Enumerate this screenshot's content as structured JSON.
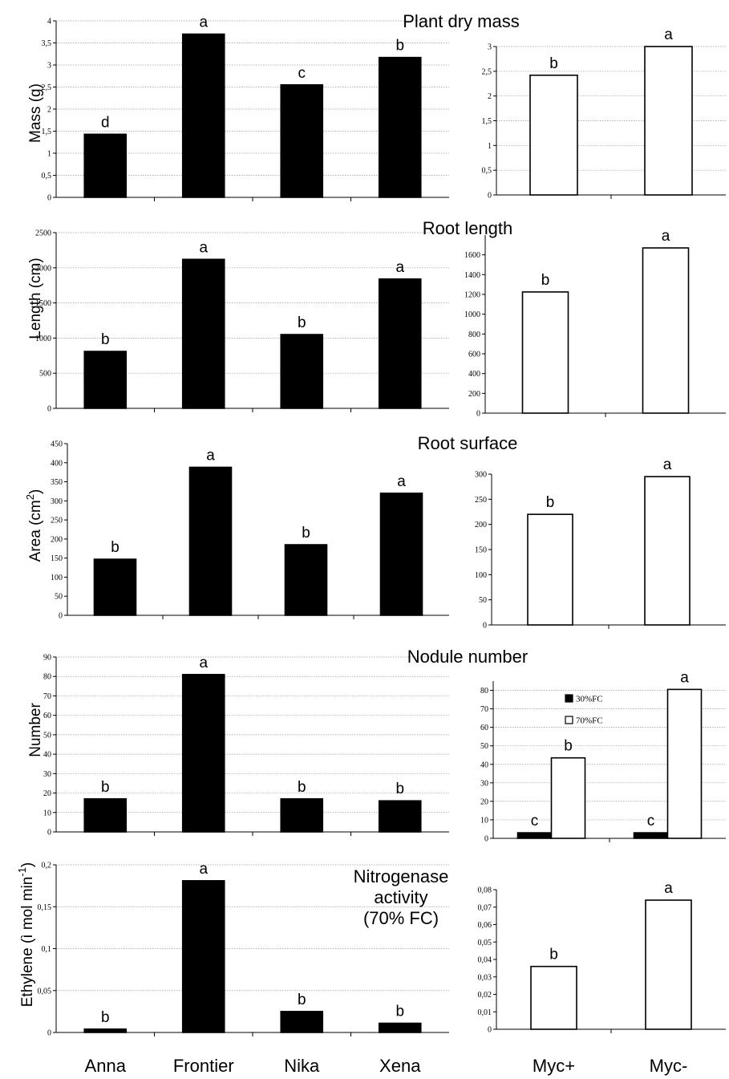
{
  "colors": {
    "black_series": "#000000",
    "white_series": "#ffffff",
    "grid": "#9a9a9a"
  },
  "legend": {
    "items": [
      {
        "label": "30%FC",
        "fill": "#000000"
      },
      {
        "label": "70%FC",
        "fill": "#ffffff"
      }
    ]
  },
  "chart_data": [
    {
      "id": "mass-cultivar",
      "type": "bar",
      "title": "Plant dry mass",
      "ylabel": "Mass (g)",
      "categories": [
        "Anna",
        "Frontier",
        "Nika",
        "Xena"
      ],
      "show_category_labels": false,
      "ylim": [
        0,
        4
      ],
      "yticks": [
        "0",
        "0,5",
        "1",
        "1,5",
        "2",
        "2,5",
        "3",
        "3,5",
        "4"
      ],
      "grid": true,
      "series": [
        {
          "fill": "#000000",
          "values": [
            1.43,
            3.7,
            2.55,
            3.17
          ],
          "letters": [
            "d",
            "a",
            "c",
            "b"
          ]
        }
      ]
    },
    {
      "id": "mass-myc",
      "type": "bar",
      "categories": [
        "Myc+",
        "Myc-"
      ],
      "show_category_labels": false,
      "ylim": [
        0,
        3
      ],
      "yticks": [
        "0",
        "0,5",
        "1",
        "1,5",
        "2",
        "2,5",
        "3"
      ],
      "grid": true,
      "series": [
        {
          "fill": "#ffffff",
          "values": [
            2.42,
            3.0
          ],
          "letters": [
            "b",
            "a"
          ]
        }
      ]
    },
    {
      "id": "length-cultivar",
      "type": "bar",
      "title": "Root length",
      "ylabel": "Length (cm)",
      "categories": [
        "Anna",
        "Frontier",
        "Nika",
        "Xena"
      ],
      "show_category_labels": false,
      "ylim": [
        0,
        2500
      ],
      "yticks": [
        "0",
        "500",
        "1000",
        "1500",
        "2000",
        "2500"
      ],
      "grid": true,
      "series": [
        {
          "fill": "#000000",
          "values": [
            810,
            2120,
            1050,
            1840
          ],
          "letters": [
            "b",
            "a",
            "b",
            "a"
          ]
        }
      ]
    },
    {
      "id": "length-myc",
      "type": "bar",
      "categories": [
        "Myc+",
        "Myc-"
      ],
      "show_category_labels": false,
      "ylim": [
        0,
        1800
      ],
      "yticks": [
        "0",
        "200",
        "400",
        "600",
        "800",
        "1000",
        "1200",
        "1400",
        "1600"
      ],
      "grid": false,
      "series": [
        {
          "fill": "#ffffff",
          "values": [
            1225,
            1670
          ],
          "letters": [
            "b",
            "a"
          ]
        }
      ]
    },
    {
      "id": "surface-cultivar",
      "type": "bar",
      "title": "Root surface",
      "ylabel": "Area (cm²)",
      "categories": [
        "Anna",
        "Frontier",
        "Nika",
        "Xena"
      ],
      "show_category_labels": false,
      "ylim": [
        0,
        450
      ],
      "yticks": [
        "0",
        "50",
        "100",
        "150",
        "200",
        "250",
        "300",
        "350",
        "400",
        "450"
      ],
      "grid": false,
      "series": [
        {
          "fill": "#000000",
          "values": [
            147,
            388,
            185,
            320
          ],
          "letters": [
            "b",
            "a",
            "b",
            "a"
          ]
        }
      ]
    },
    {
      "id": "surface-myc",
      "type": "bar",
      "categories": [
        "Myc+",
        "Myc-"
      ],
      "show_category_labels": false,
      "ylim": [
        0,
        300
      ],
      "yticks": [
        "0",
        "50",
        "100",
        "150",
        "200",
        "250",
        "300"
      ],
      "grid": false,
      "series": [
        {
          "fill": "#ffffff",
          "values": [
            220,
            295
          ],
          "letters": [
            "b",
            "a"
          ]
        }
      ]
    },
    {
      "id": "nodule-cultivar",
      "type": "bar",
      "title": "Nodule number",
      "ylabel": "Number",
      "categories": [
        "Anna",
        "Frontier",
        "Nika",
        "Xena"
      ],
      "show_category_labels": false,
      "ylim": [
        0,
        90
      ],
      "yticks": [
        "0",
        "10",
        "20",
        "30",
        "40",
        "50",
        "60",
        "70",
        "80",
        "90"
      ],
      "grid": true,
      "series": [
        {
          "fill": "#000000",
          "values": [
            17,
            81,
            17,
            16
          ],
          "letters": [
            "b",
            "a",
            "b",
            "b"
          ]
        }
      ]
    },
    {
      "id": "nodule-myc",
      "type": "bar",
      "categories": [
        "Myc+",
        "Myc-"
      ],
      "show_category_labels": false,
      "ylim": [
        0,
        85
      ],
      "yticks": [
        "0",
        "10",
        "20",
        "30",
        "40",
        "50",
        "60",
        "70",
        "80"
      ],
      "grid": true,
      "legend": "top-left",
      "series": [
        {
          "name": "30%FC",
          "fill": "#000000",
          "values": [
            3,
            3
          ],
          "letters": [
            "c",
            "c"
          ]
        },
        {
          "name": "70%FC",
          "fill": "#ffffff",
          "values": [
            43.5,
            80.5
          ],
          "letters": [
            "b",
            "a"
          ]
        }
      ]
    },
    {
      "id": "nitro-cultivar",
      "type": "bar",
      "title": "Nitrogenase activity (70% FC)",
      "title_lines": [
        "Nitrogenase",
        "activity",
        "(70% FC)"
      ],
      "ylabel": "Ethylene (ì mol min-1)",
      "categories": [
        "Anna",
        "Frontier",
        "Nika",
        "Xena"
      ],
      "show_category_labels": true,
      "ylim": [
        0,
        0.2
      ],
      "yticks": [
        "0",
        "0,05",
        "0,1",
        "0,15",
        "0,2"
      ],
      "grid": true,
      "series": [
        {
          "fill": "#000000",
          "values": [
            0.004,
            0.181,
            0.025,
            0.011
          ],
          "letters": [
            "b",
            "a",
            "b",
            "b"
          ]
        }
      ]
    },
    {
      "id": "nitro-myc",
      "type": "bar",
      "categories": [
        "Myc+",
        "Myc-"
      ],
      "show_category_labels": true,
      "ylim": [
        0,
        0.08
      ],
      "yticks": [
        "0",
        "0,01",
        "0,02",
        "0,03",
        "0,04",
        "0,05",
        "0,06",
        "0,07",
        "0,08"
      ],
      "grid": false,
      "series": [
        {
          "fill": "#ffffff",
          "values": [
            0.036,
            0.074
          ],
          "letters": [
            "b",
            "a"
          ]
        }
      ]
    }
  ]
}
